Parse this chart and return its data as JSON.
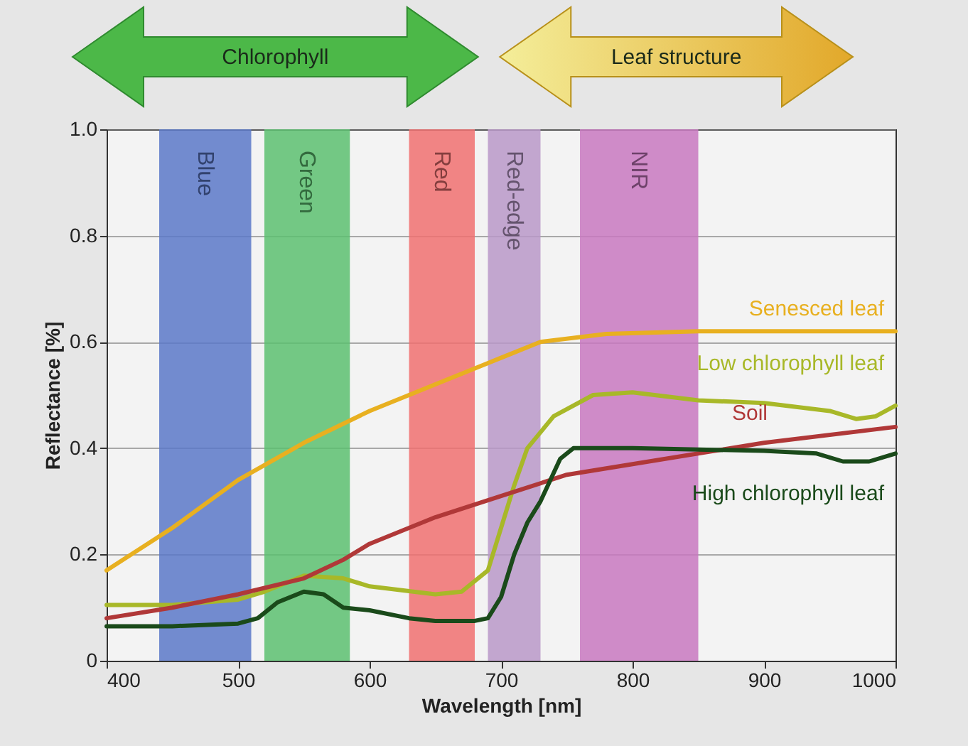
{
  "chart_data": {
    "type": "line",
    "xlabel": "Wavelength [nm]",
    "ylabel": "Reflectance [%]",
    "annotations": [
      "Chlorophyll",
      "Leaf structure"
    ],
    "xlim": [
      400,
      1000
    ],
    "xticks": [
      400,
      500,
      600,
      700,
      800,
      900,
      1000
    ],
    "ylim": [
      0,
      1
    ],
    "yticks": [
      0,
      0.2,
      0.4,
      0.6,
      0.8,
      {
        "value": 1,
        "label": "1.0"
      }
    ],
    "grid": "y",
    "marker": "none",
    "line_style": "solid",
    "bands": [
      {
        "axis": "x",
        "from": 440,
        "to": 510,
        "label": "Blue",
        "color": "#5a78c8"
      },
      {
        "axis": "x",
        "from": 520,
        "to": 585,
        "label": "Green",
        "color": "#5cc070"
      },
      {
        "axis": "x",
        "from": 630,
        "to": 680,
        "label": "Red",
        "color": "#f07070"
      },
      {
        "axis": "x",
        "from": 690,
        "to": 730,
        "label": "Red-edge",
        "color": "#b898c8"
      },
      {
        "axis": "x",
        "from": 760,
        "to": 850,
        "label": "NIR",
        "color": "#c878c0"
      }
    ],
    "series": [
      {
        "name": "Senesced leaf",
        "color": "#e8b020",
        "x": [
          400,
          450,
          500,
          550,
          600,
          650,
          700,
          730,
          780,
          850,
          1000
        ],
        "values": [
          0.17,
          0.25,
          0.34,
          0.41,
          0.47,
          0.52,
          0.57,
          0.6,
          0.615,
          0.62,
          0.62
        ]
      },
      {
        "name": "Low chlorophyll leaf",
        "color": "#a8b828",
        "x": [
          400,
          450,
          500,
          520,
          550,
          580,
          600,
          650,
          670,
          690,
          700,
          710,
          720,
          740,
          770,
          800,
          850,
          900,
          950,
          970,
          985,
          1000
        ],
        "values": [
          0.105,
          0.105,
          0.115,
          0.13,
          0.16,
          0.155,
          0.14,
          0.125,
          0.13,
          0.17,
          0.25,
          0.33,
          0.4,
          0.46,
          0.5,
          0.505,
          0.49,
          0.485,
          0.47,
          0.455,
          0.46,
          0.48
        ]
      },
      {
        "name": "Soil",
        "color": "#b03838",
        "x": [
          400,
          450,
          500,
          550,
          580,
          600,
          650,
          700,
          750,
          800,
          900,
          1000
        ],
        "values": [
          0.08,
          0.1,
          0.125,
          0.155,
          0.19,
          0.22,
          0.27,
          0.31,
          0.35,
          0.37,
          0.41,
          0.44
        ]
      },
      {
        "name": "High chlorophyll leaf",
        "color": "#1a4a1a",
        "x": [
          400,
          450,
          500,
          515,
          530,
          550,
          565,
          580,
          600,
          630,
          650,
          680,
          690,
          700,
          710,
          720,
          730,
          745,
          755,
          800,
          900,
          940,
          960,
          980,
          1000
        ],
        "values": [
          0.065,
          0.065,
          0.07,
          0.08,
          0.11,
          0.13,
          0.125,
          0.1,
          0.095,
          0.08,
          0.075,
          0.075,
          0.08,
          0.12,
          0.2,
          0.26,
          0.3,
          0.38,
          0.4,
          0.4,
          0.395,
          0.39,
          0.375,
          0.375,
          0.39
        ]
      }
    ]
  }
}
